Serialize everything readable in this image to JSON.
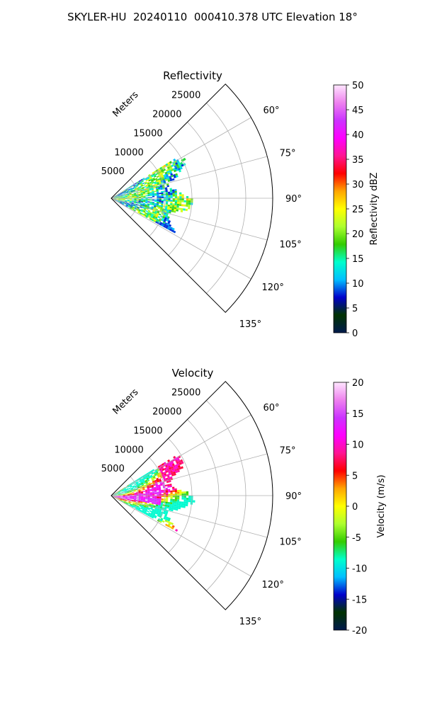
{
  "figure": {
    "title": "SKYLER-HU  20240110  000410.378 UTC Elevation 18°"
  },
  "chart_data": [
    {
      "type": "heatmap",
      "title": "Reflectivity",
      "projection": "polar-sector",
      "theta_range_deg": [
        45,
        135
      ],
      "theta_ticks": [
        "60°",
        "75°",
        "90°",
        "105°",
        "120°",
        "135°"
      ],
      "r_max": 30000,
      "r_ticks": [
        5000,
        10000,
        15000,
        20000,
        25000
      ],
      "r_tick_labels": [
        "5000",
        "10000",
        "15000",
        "20000",
        "25000"
      ],
      "r_unit_label": "Meters",
      "data_extent": {
        "r_max_approx": 15000,
        "theta_range_approx": [
          58,
          118
        ]
      },
      "colorbar": {
        "label": "Reflectivity dBZ",
        "range": [
          0,
          50
        ],
        "ticks": [
          "0",
          "5",
          "10",
          "15",
          "20",
          "25",
          "30",
          "35",
          "40",
          "45",
          "50"
        ],
        "stops": [
          "#001a4d",
          "#003300",
          "#0000cc",
          "#00bfff",
          "#00ffcc",
          "#33cc00",
          "#adff2f",
          "#ffff00",
          "#ffa500",
          "#ff0000",
          "#ff1493",
          "#ff00ff",
          "#cc33ff",
          "#ee82ee",
          "#ffe6ff"
        ]
      }
    },
    {
      "type": "heatmap",
      "title": "Velocity",
      "projection": "polar-sector",
      "theta_range_deg": [
        45,
        135
      ],
      "theta_ticks": [
        "60°",
        "75°",
        "90°",
        "105°",
        "120°",
        "135°"
      ],
      "r_max": 30000,
      "r_ticks": [
        5000,
        10000,
        15000,
        20000,
        25000
      ],
      "r_tick_labels": [
        "5000",
        "10000",
        "15000",
        "20000",
        "25000"
      ],
      "r_unit_label": "Meters",
      "data_extent": {
        "r_max_approx": 15000,
        "theta_range_approx": [
          58,
          118
        ]
      },
      "colorbar": {
        "label": "Velocity (m/s)",
        "range": [
          -20,
          20
        ],
        "ticks": [
          "-20",
          "-15",
          "-10",
          "-5",
          "0",
          "5",
          "10",
          "15",
          "20"
        ],
        "stops": [
          "#001a4d",
          "#003300",
          "#0000cc",
          "#00bfff",
          "#00ffcc",
          "#33cc00",
          "#adff2f",
          "#ffff00",
          "#ffa500",
          "#ff0000",
          "#ff1493",
          "#ff00ff",
          "#cc33ff",
          "#ee82ee",
          "#ffe6ff"
        ]
      }
    }
  ]
}
